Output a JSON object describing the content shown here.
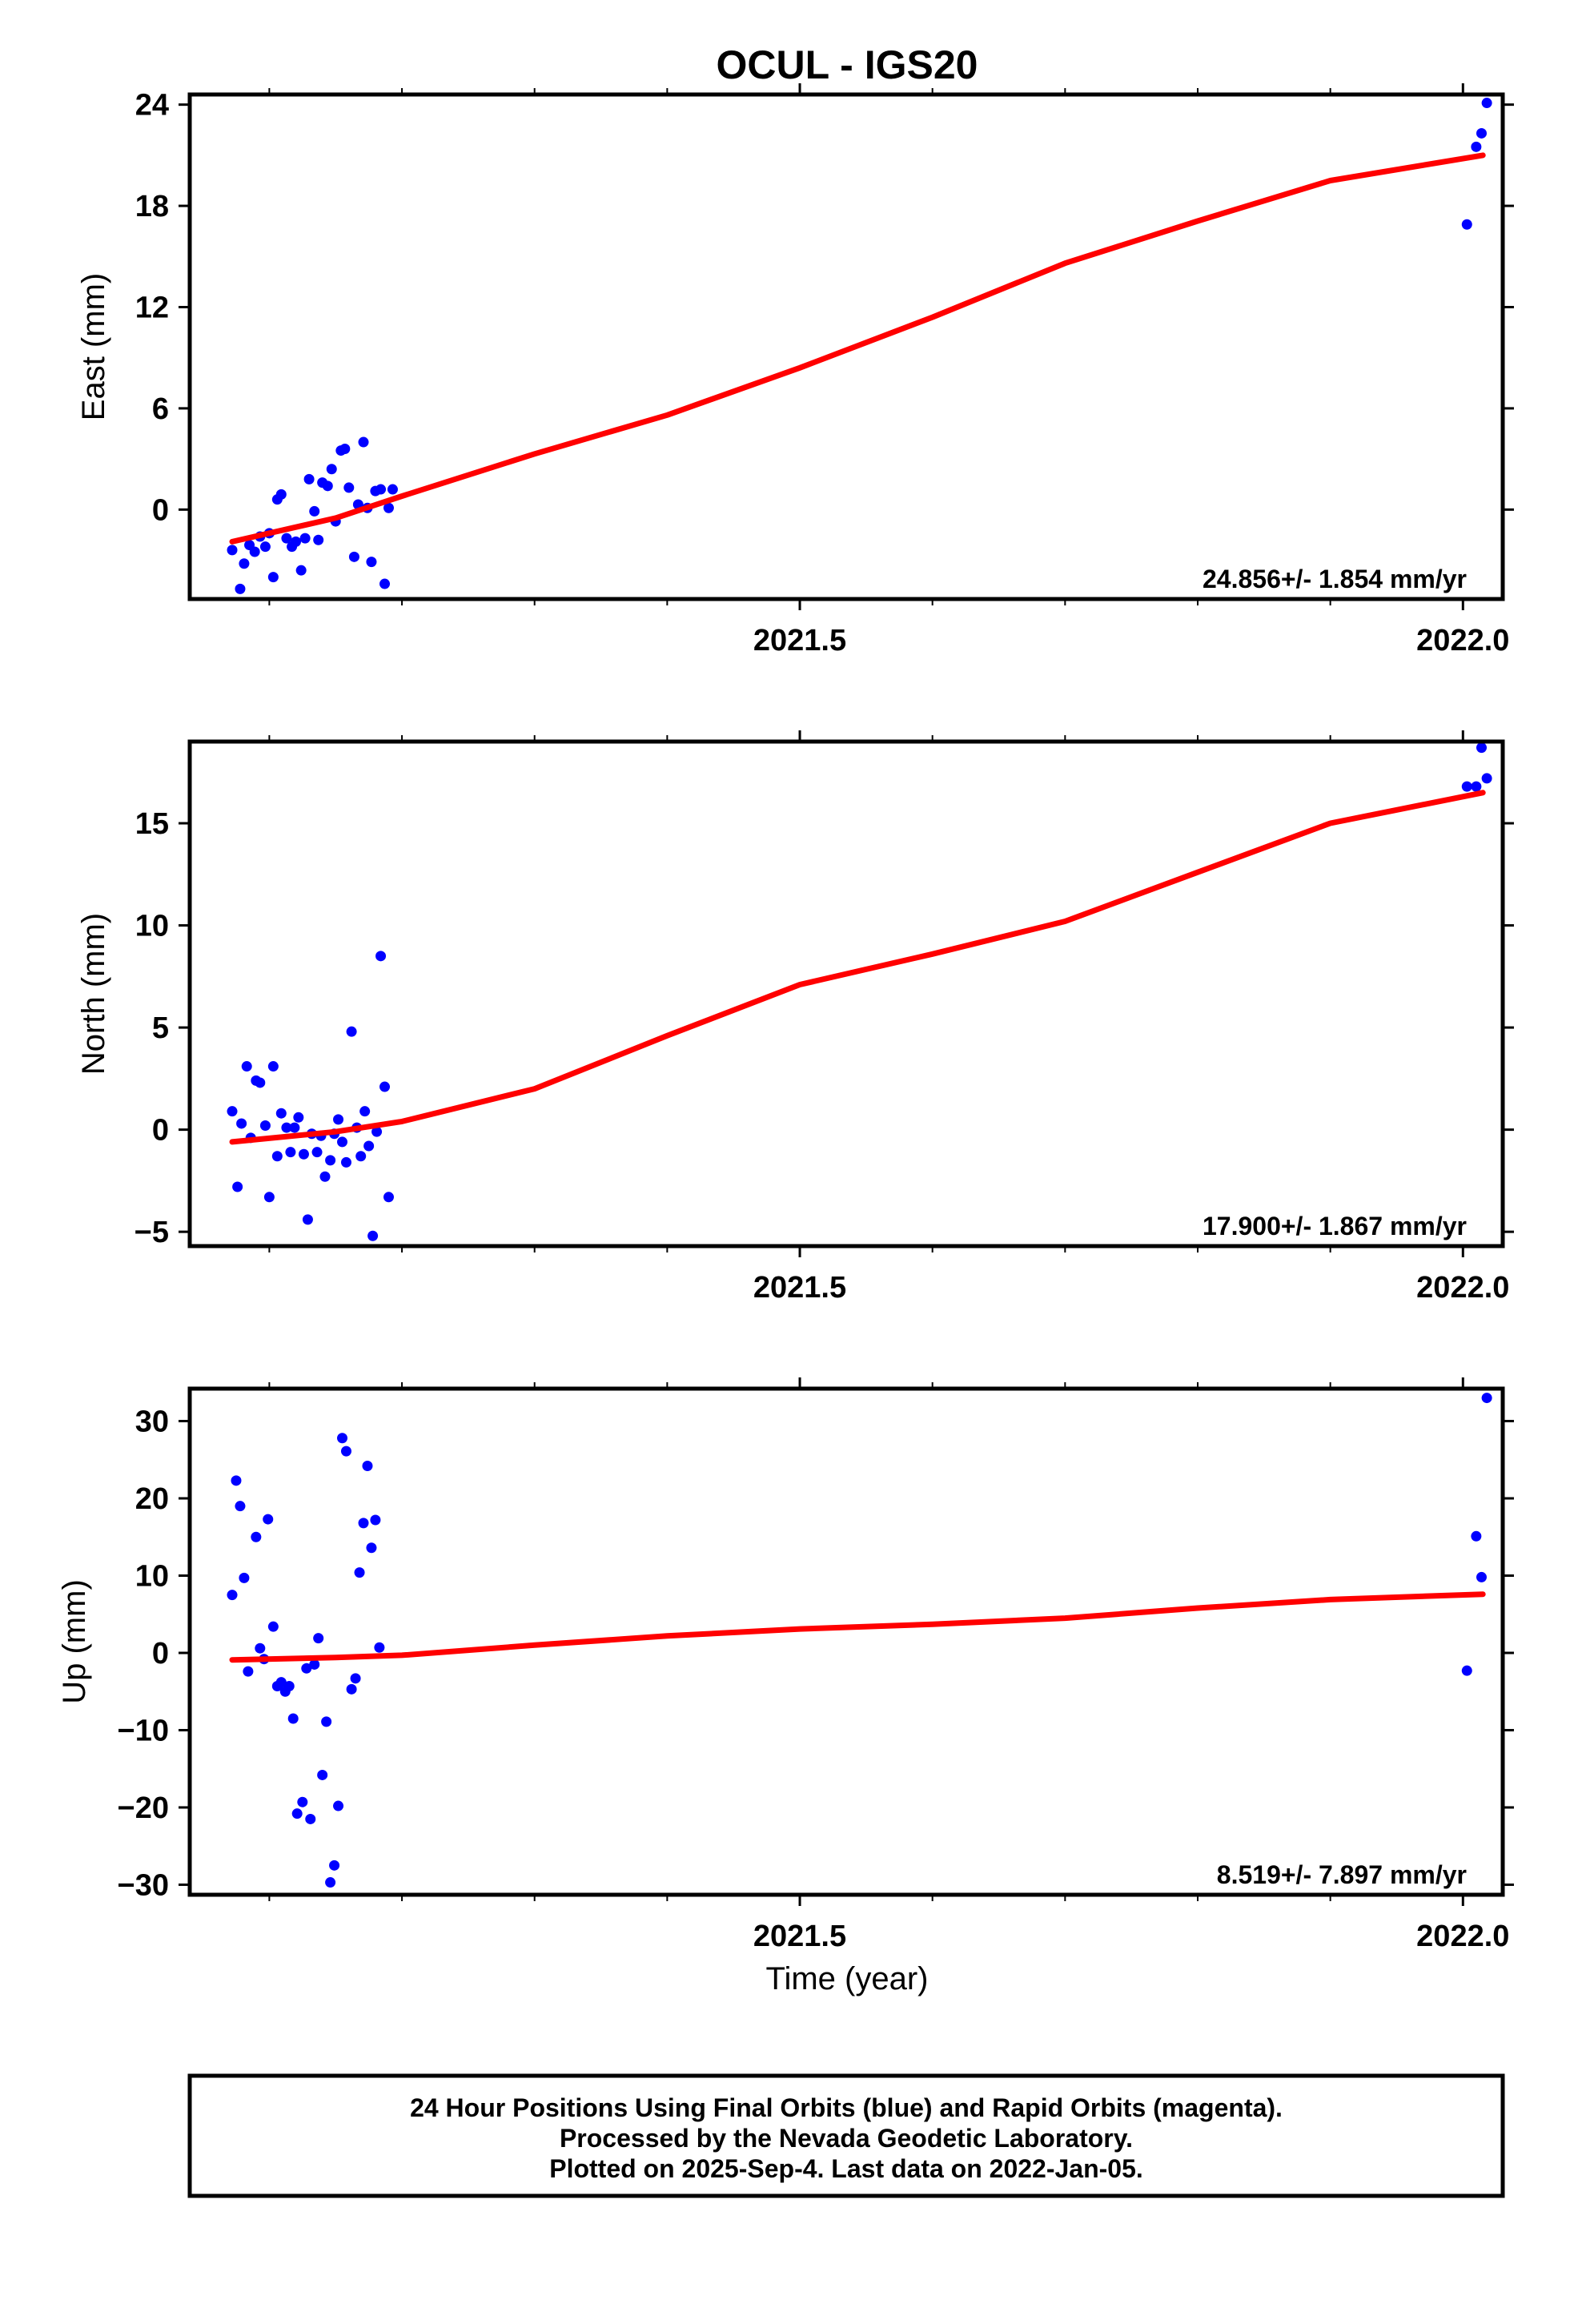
{
  "chart_data": {
    "title": "OCUL - IGS20",
    "xlabel": "Time (year)",
    "x_range": [
      2021.04,
      2022.03
    ],
    "x_ticks": [
      2021.5,
      2022.0
    ],
    "x_tick_labels": [
      "2021.5",
      "2022.0"
    ],
    "x_minor_ticks": [
      2021.1,
      2021.2,
      2021.3,
      2021.4,
      2021.6,
      2021.7,
      2021.8,
      2021.9
    ],
    "colors": {
      "final_orbits": "#0000ff",
      "fit": "#ff0000"
    },
    "panels": [
      {
        "name": "east",
        "ylabel": "East (mm)",
        "ylim": [
          -5.3,
          24.6
        ],
        "y_ticks": [
          0,
          6,
          12,
          18,
          24
        ],
        "y_tick_labels": [
          "0",
          "6",
          "12",
          "18",
          "24"
        ],
        "rate": "24.856+/- 1.854 mm/yr",
        "points": [
          [
            2021.072,
            -2.4
          ],
          [
            2021.078,
            -4.7
          ],
          [
            2021.081,
            -3.2
          ],
          [
            2021.085,
            -2.1
          ],
          [
            2021.089,
            -2.5
          ],
          [
            2021.093,
            -1.6
          ],
          [
            2021.097,
            -2.2
          ],
          [
            2021.1,
            -1.4
          ],
          [
            2021.103,
            -4
          ],
          [
            2021.106,
            0.6
          ],
          [
            2021.109,
            0.9
          ],
          [
            2021.113,
            -1.7
          ],
          [
            2021.117,
            -2.2
          ],
          [
            2021.12,
            -1.9
          ],
          [
            2021.124,
            -3.6
          ],
          [
            2021.127,
            -1.7
          ],
          [
            2021.13,
            1.8
          ],
          [
            2021.134,
            -0.1
          ],
          [
            2021.137,
            -1.8
          ],
          [
            2021.14,
            1.6
          ],
          [
            2021.144,
            1.4
          ],
          [
            2021.147,
            2.4
          ],
          [
            2021.15,
            -0.7
          ],
          [
            2021.154,
            3.5
          ],
          [
            2021.157,
            3.6
          ],
          [
            2021.16,
            1.3
          ],
          [
            2021.164,
            -2.8
          ],
          [
            2021.167,
            0.3
          ],
          [
            2021.171,
            4
          ],
          [
            2021.174,
            0.1
          ],
          [
            2021.177,
            -3.1
          ],
          [
            2021.18,
            1.1
          ],
          [
            2021.184,
            1.2
          ],
          [
            2021.187,
            -4.4
          ],
          [
            2021.19,
            0.1
          ],
          [
            2021.193,
            1.2
          ],
          [
            2022.003,
            16.9
          ],
          [
            2022.01,
            21.5
          ],
          [
            2022.014,
            22.3
          ],
          [
            2022.018,
            24.1
          ]
        ],
        "fit": [
          [
            2021.072,
            -1.9
          ],
          [
            2021.15,
            -0.5
          ],
          [
            2021.2,
            0.8
          ],
          [
            2021.3,
            3.3
          ],
          [
            2021.4,
            5.6
          ],
          [
            2021.5,
            8.4
          ],
          [
            2021.6,
            11.4
          ],
          [
            2021.7,
            14.6
          ],
          [
            2021.8,
            17.1
          ],
          [
            2021.9,
            19.5
          ],
          [
            2022.015,
            21.0
          ]
        ]
      },
      {
        "name": "north",
        "ylabel": "North (mm)",
        "ylim": [
          -5.7,
          19.0
        ],
        "y_ticks": [
          -5,
          0,
          5,
          10,
          15
        ],
        "y_tick_labels": [
          "−5",
          "0",
          "5",
          "10",
          "15"
        ],
        "rate": "17.900+/- 1.867 mm/yr",
        "points": [
          [
            2021.072,
            0.9
          ],
          [
            2021.076,
            -2.8
          ],
          [
            2021.079,
            0.3
          ],
          [
            2021.083,
            3.1
          ],
          [
            2021.086,
            -0.4
          ],
          [
            2021.09,
            2.4
          ],
          [
            2021.093,
            2.3
          ],
          [
            2021.097,
            0.2
          ],
          [
            2021.1,
            -3.3
          ],
          [
            2021.103,
            3.1
          ],
          [
            2021.106,
            -1.3
          ],
          [
            2021.109,
            0.8
          ],
          [
            2021.113,
            0.1
          ],
          [
            2021.116,
            -1.1
          ],
          [
            2021.119,
            0.1
          ],
          [
            2021.122,
            0.6
          ],
          [
            2021.126,
            -1.2
          ],
          [
            2021.129,
            -4.4
          ],
          [
            2021.132,
            -0.2
          ],
          [
            2021.136,
            -1.1
          ],
          [
            2021.139,
            -0.3
          ],
          [
            2021.142,
            -2.3
          ],
          [
            2021.146,
            -1.5
          ],
          [
            2021.149,
            -0.2
          ],
          [
            2021.152,
            0.5
          ],
          [
            2021.155,
            -0.6
          ],
          [
            2021.158,
            -1.6
          ],
          [
            2021.162,
            4.8
          ],
          [
            2021.166,
            0.1
          ],
          [
            2021.169,
            -1.3
          ],
          [
            2021.172,
            0.9
          ],
          [
            2021.175,
            -0.8
          ],
          [
            2021.178,
            -5.2
          ],
          [
            2021.181,
            -0.1
          ],
          [
            2021.184,
            8.5
          ],
          [
            2021.187,
            2.1
          ],
          [
            2021.19,
            -3.3
          ],
          [
            2022.003,
            16.8
          ],
          [
            2022.01,
            16.8
          ],
          [
            2022.014,
            18.7
          ],
          [
            2022.018,
            17.2
          ]
        ],
        "fit": [
          [
            2021.072,
            -0.6
          ],
          [
            2021.15,
            -0.1
          ],
          [
            2021.2,
            0.4
          ],
          [
            2021.3,
            2.0
          ],
          [
            2021.4,
            4.6
          ],
          [
            2021.5,
            7.1
          ],
          [
            2021.6,
            8.6
          ],
          [
            2021.7,
            10.2
          ],
          [
            2021.8,
            12.6
          ],
          [
            2021.9,
            15.0
          ],
          [
            2022.015,
            16.5
          ]
        ]
      },
      {
        "name": "up",
        "ylabel": "Up (mm)",
        "ylim": [
          -31.3,
          34.2
        ],
        "y_ticks": [
          -30,
          -20,
          -10,
          0,
          10,
          20,
          30
        ],
        "y_tick_labels": [
          "−30",
          "−20",
          "−10",
          "0",
          "10",
          "20",
          "30"
        ],
        "rate": "8.519+/- 7.897 mm/yr",
        "points": [
          [
            2021.072,
            7.5
          ],
          [
            2021.075,
            22.3
          ],
          [
            2021.078,
            19
          ],
          [
            2021.081,
            9.7
          ],
          [
            2021.084,
            -2.4
          ],
          [
            2021.09,
            15
          ],
          [
            2021.093,
            0.6
          ],
          [
            2021.096,
            -0.8
          ],
          [
            2021.099,
            17.3
          ],
          [
            2021.103,
            3.4
          ],
          [
            2021.106,
            -4.3
          ],
          [
            2021.109,
            -3.8
          ],
          [
            2021.112,
            -5
          ],
          [
            2021.115,
            -4.3
          ],
          [
            2021.118,
            -8.5
          ],
          [
            2021.121,
            -20.8
          ],
          [
            2021.125,
            -19.3
          ],
          [
            2021.128,
            -2
          ],
          [
            2021.131,
            -21.5
          ],
          [
            2021.134,
            -1.5
          ],
          [
            2021.137,
            1.9
          ],
          [
            2021.14,
            -15.8
          ],
          [
            2021.143,
            -8.9
          ],
          [
            2021.146,
            -29.7
          ],
          [
            2021.149,
            -27.5
          ],
          [
            2021.152,
            -19.8
          ],
          [
            2021.155,
            27.8
          ],
          [
            2021.158,
            26.1
          ],
          [
            2021.162,
            -4.7
          ],
          [
            2021.165,
            -3.3
          ],
          [
            2021.168,
            10.4
          ],
          [
            2021.171,
            16.8
          ],
          [
            2021.174,
            24.2
          ],
          [
            2021.177,
            13.6
          ],
          [
            2021.18,
            17.2
          ],
          [
            2021.183,
            0.7
          ],
          [
            2022.003,
            -2.3
          ],
          [
            2022.01,
            15.1
          ],
          [
            2022.014,
            9.8
          ],
          [
            2022.018,
            33.0
          ]
        ],
        "fit": [
          [
            2021.072,
            -0.9
          ],
          [
            2021.15,
            -0.6
          ],
          [
            2021.2,
            -0.3
          ],
          [
            2021.3,
            1.0
          ],
          [
            2021.4,
            2.2
          ],
          [
            2021.5,
            3.1
          ],
          [
            2021.6,
            3.7
          ],
          [
            2021.7,
            4.5
          ],
          [
            2021.8,
            5.8
          ],
          [
            2021.9,
            6.9
          ],
          [
            2022.015,
            7.6
          ]
        ]
      }
    ]
  },
  "footer": {
    "line1": "24 Hour Positions Using Final Orbits (blue) and Rapid Orbits (magenta).",
    "line2": "Processed by the Nevada Geodetic Laboratory.",
    "line3": "Plotted on 2025-Sep-4. Last data on 2022-Jan-05."
  }
}
